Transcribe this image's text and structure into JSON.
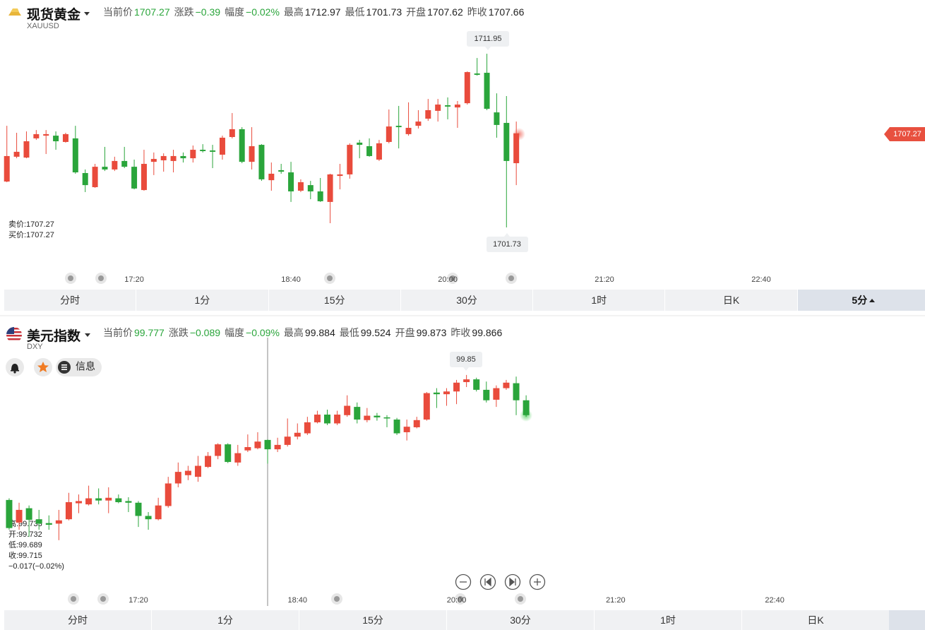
{
  "chart_data": [
    {
      "type": "candlestick",
      "title": "现货黄金",
      "subtitle": "XAUUSD",
      "stats": [
        {
          "label": "当前价",
          "value": "1707.27",
          "color": "#2aa53b"
        },
        {
          "label": "涨跌",
          "value": "−0.39",
          "color": "#2aa53b"
        },
        {
          "label": "幅度",
          "value": "−0.02%",
          "color": "#2aa53b"
        },
        {
          "label": "最高",
          "value": "1712.97"
        },
        {
          "label": "最低",
          "value": "1701.73"
        },
        {
          "label": "开盘",
          "value": "1707.62"
        },
        {
          "label": "昨收",
          "value": "1707.66"
        }
      ],
      "quote": [
        "卖价:1707.27",
        "买价:1707.27"
      ],
      "up_color": "#e94b3c",
      "down_color": "#2aa53b",
      "xlim": [
        971.5,
        1443.6
      ],
      "ylim": [
        1699.32,
        1713.45
      ],
      "xticks": [
        {
          "value": 1040,
          "label": "17:20"
        },
        {
          "value": 1120,
          "label": "18:40"
        },
        {
          "value": 1200,
          "label": "20:00"
        },
        {
          "value": 1280,
          "label": "21:20"
        },
        {
          "value": 1360,
          "label": "22:40"
        }
      ],
      "x": [
        975,
        980,
        985,
        990,
        995,
        1000,
        1005,
        1010,
        1015,
        1020,
        1025,
        1030,
        1035,
        1040,
        1045,
        1050,
        1055,
        1060,
        1065,
        1070,
        1075,
        1080,
        1085,
        1090,
        1095,
        1100,
        1105,
        1110,
        1115,
        1120,
        1125,
        1130,
        1135,
        1140,
        1145,
        1150,
        1155,
        1160,
        1165,
        1170,
        1175,
        1180,
        1185,
        1190,
        1195,
        1200,
        1205,
        1210,
        1215,
        1220,
        1225,
        1230,
        1235
      ],
      "open": [
        1704.43,
        1705.89,
        1705.84,
        1706.97,
        1707.13,
        1707.13,
        1706.76,
        1706.97,
        1704.93,
        1704.1,
        1705.3,
        1705.14,
        1705.64,
        1705.3,
        1703.93,
        1705.59,
        1705.68,
        1705.64,
        1705.93,
        1705.8,
        1706.3,
        1706.26,
        1706.01,
        1707.05,
        1707.51,
        1705.59,
        1706.59,
        1704.51,
        1705.1,
        1704.97,
        1703.89,
        1704.22,
        1703.85,
        1703.23,
        1704.76,
        1704.85,
        1706.72,
        1706.51,
        1705.72,
        1706.76,
        1707.71,
        1707.22,
        1707.71,
        1708.13,
        1708.59,
        1708.92,
        1708.79,
        1709.04,
        1710.79,
        1710.83,
        1708.5,
        1707.88,
        1705.51
      ],
      "high": [
        1707.71,
        1707.3,
        1707.38,
        1707.46,
        1707.46,
        1707.38,
        1707.3,
        1707.71,
        1705.14,
        1705.47,
        1706.47,
        1705.89,
        1706.47,
        1705.72,
        1706.3,
        1706.14,
        1706.09,
        1706.3,
        1706.14,
        1706.55,
        1706.63,
        1706.59,
        1707.13,
        1708.46,
        1707.63,
        1707.63,
        1706.63,
        1705.55,
        1705.47,
        1705.59,
        1704.56,
        1704.47,
        1704.64,
        1704.89,
        1705.47,
        1706.68,
        1706.88,
        1706.97,
        1706.88,
        1708.67,
        1708.88,
        1709.09,
        1708.63,
        1709.29,
        1709.29,
        1709.38,
        1709.17,
        1710.91,
        1711.7,
        1711.95,
        1709.62,
        1709.46,
        1707.96
      ],
      "low": [
        1704.39,
        1705.8,
        1705.8,
        1706.88,
        1706.05,
        1706.3,
        1706.72,
        1704.89,
        1703.81,
        1704.06,
        1705.05,
        1705.05,
        1705.22,
        1703.97,
        1703.89,
        1704.81,
        1705.01,
        1704.97,
        1705.55,
        1705.55,
        1706.14,
        1705.22,
        1705.72,
        1706.97,
        1705.51,
        1705.14,
        1704.47,
        1703.89,
        1704.89,
        1703.23,
        1703.81,
        1703.39,
        1703.23,
        1701.98,
        1703.97,
        1704.6,
        1705.8,
        1705.89,
        1705.64,
        1706.68,
        1706.38,
        1707.13,
        1707.55,
        1708.0,
        1707.96,
        1708.09,
        1707.59,
        1708.96,
        1710.66,
        1708.63,
        1707.01,
        1701.73,
        1704.22
      ],
      "close": [
        1705.93,
        1706.18,
        1706.8,
        1707.22,
        1707.22,
        1706.8,
        1707.22,
        1704.97,
        1704.22,
        1705.3,
        1705.14,
        1705.64,
        1705.3,
        1704.02,
        1705.47,
        1705.76,
        1705.93,
        1705.93,
        1705.8,
        1706.3,
        1706.22,
        1706.18,
        1707.01,
        1707.51,
        1705.59,
        1706.51,
        1704.56,
        1704.89,
        1705.01,
        1703.85,
        1704.39,
        1703.85,
        1703.27,
        1704.85,
        1704.85,
        1706.59,
        1706.59,
        1705.93,
        1706.68,
        1707.67,
        1707.63,
        1707.59,
        1707.96,
        1708.63,
        1708.96,
        1708.84,
        1708.96,
        1710.87,
        1710.71,
        1708.71,
        1707.76,
        1705.64,
        1707.27
      ]
    },
    {
      "type": "candlestick",
      "title": "美元指数",
      "subtitle": "DXY",
      "stats": [
        {
          "label": "当前价",
          "value": "99.777",
          "color": "#2aa53b"
        },
        {
          "label": "涨跌",
          "value": "−0.089",
          "color": "#2aa53b"
        },
        {
          "label": "幅度",
          "value": "−0.09%",
          "color": "#2aa53b"
        },
        {
          "label": "最高",
          "value": "99.884"
        },
        {
          "label": "最低",
          "value": "99.524"
        },
        {
          "label": "开盘",
          "value": "99.873"
        },
        {
          "label": "昨收",
          "value": "99.866"
        }
      ],
      "tooltip": [
        "高:99.733",
        "开:99.732",
        "低:99.689",
        "收:99.715",
        "−0.017(−0.02%)"
      ],
      "up_color": "#e94b3c",
      "down_color": "#2aa53b",
      "xlim": [
        970.4,
        1435.6
      ],
      "ylim": [
        99.46,
        99.896
      ],
      "xticks": [
        {
          "value": 1040,
          "label": "17:20"
        },
        {
          "value": 1120,
          "label": "18:40"
        },
        {
          "value": 1200,
          "label": "20:00"
        },
        {
          "value": 1280,
          "label": "21:20"
        },
        {
          "value": 1360,
          "label": "22:40"
        }
      ],
      "x": [
        975,
        980,
        985,
        990,
        995,
        1000,
        1005,
        1010,
        1015,
        1020,
        1025,
        1030,
        1035,
        1040,
        1045,
        1050,
        1055,
        1060,
        1065,
        1070,
        1075,
        1080,
        1085,
        1090,
        1095,
        1100,
        1105,
        1110,
        1115,
        1120,
        1125,
        1130,
        1135,
        1140,
        1145,
        1150,
        1155,
        1160,
        1165,
        1170,
        1175,
        1180,
        1185,
        1190,
        1195,
        1200,
        1205,
        1210,
        1215,
        1220,
        1225,
        1230,
        1235
      ],
      "open": [
        99.623,
        99.582,
        99.608,
        99.588,
        99.581,
        99.58,
        99.588,
        99.617,
        99.615,
        99.626,
        99.622,
        99.626,
        99.621,
        99.618,
        99.594,
        99.588,
        99.612,
        99.653,
        99.668,
        99.665,
        99.683,
        99.703,
        99.724,
        99.691,
        99.713,
        99.717,
        99.732,
        99.715,
        99.723,
        99.738,
        99.744,
        99.764,
        99.778,
        99.762,
        99.777,
        99.792,
        99.768,
        99.776,
        99.773,
        99.769,
        99.746,
        99.755,
        99.769,
        99.818,
        99.815,
        99.82,
        99.837,
        99.842,
        99.823,
        99.805,
        99.826,
        99.835,
        99.804
      ],
      "high": [
        99.626,
        99.618,
        99.613,
        99.605,
        99.595,
        99.605,
        99.636,
        99.633,
        99.649,
        99.644,
        99.646,
        99.633,
        99.628,
        99.621,
        99.601,
        99.627,
        99.665,
        99.691,
        99.685,
        99.703,
        99.71,
        99.726,
        99.726,
        99.723,
        99.742,
        99.746,
        99.733,
        99.736,
        99.771,
        99.762,
        99.774,
        99.785,
        99.787,
        99.785,
        99.813,
        99.8,
        99.79,
        99.781,
        99.777,
        99.772,
        99.769,
        99.774,
        99.819,
        99.826,
        99.826,
        99.841,
        99.85,
        99.845,
        99.838,
        99.831,
        99.841,
        99.847,
        99.813
      ],
      "low": [
        99.569,
        99.569,
        99.556,
        99.569,
        99.569,
        99.55,
        99.586,
        99.599,
        99.613,
        99.615,
        99.599,
        99.617,
        99.601,
        99.574,
        99.569,
        99.586,
        99.609,
        99.646,
        99.659,
        99.656,
        99.681,
        99.697,
        99.69,
        99.685,
        99.71,
        99.715,
        99.689,
        99.71,
        99.72,
        99.733,
        99.741,
        99.762,
        99.759,
        99.759,
        99.774,
        99.762,
        99.764,
        99.767,
        99.755,
        99.741,
        99.731,
        99.753,
        99.767,
        99.79,
        99.794,
        99.797,
        99.828,
        99.82,
        99.8,
        99.792,
        99.823,
        99.777,
        99.774
      ],
      "close": [
        99.572,
        99.605,
        99.587,
        99.58,
        99.578,
        99.586,
        99.619,
        99.621,
        99.626,
        99.622,
        99.627,
        99.619,
        99.618,
        99.594,
        99.588,
        99.613,
        99.653,
        99.674,
        99.676,
        99.685,
        99.703,
        99.724,
        99.692,
        99.708,
        99.719,
        99.729,
        99.715,
        99.723,
        99.738,
        99.745,
        99.764,
        99.778,
        99.762,
        99.778,
        99.794,
        99.769,
        99.776,
        99.773,
        99.771,
        99.744,
        99.756,
        99.768,
        99.817,
        99.815,
        99.82,
        99.836,
        99.842,
        99.823,
        99.804,
        99.826,
        99.836,
        99.804,
        99.777
      ]
    }
  ],
  "tabs": [
    {
      "items": [
        "分时",
        "1分",
        "15分",
        "30分",
        "1时",
        "日K",
        "5分"
      ],
      "selected": 6
    },
    {
      "items": [
        "分时",
        "1分",
        "15分",
        "30分",
        "1时",
        "日K"
      ]
    }
  ],
  "buttons": {
    "info": "信息"
  }
}
